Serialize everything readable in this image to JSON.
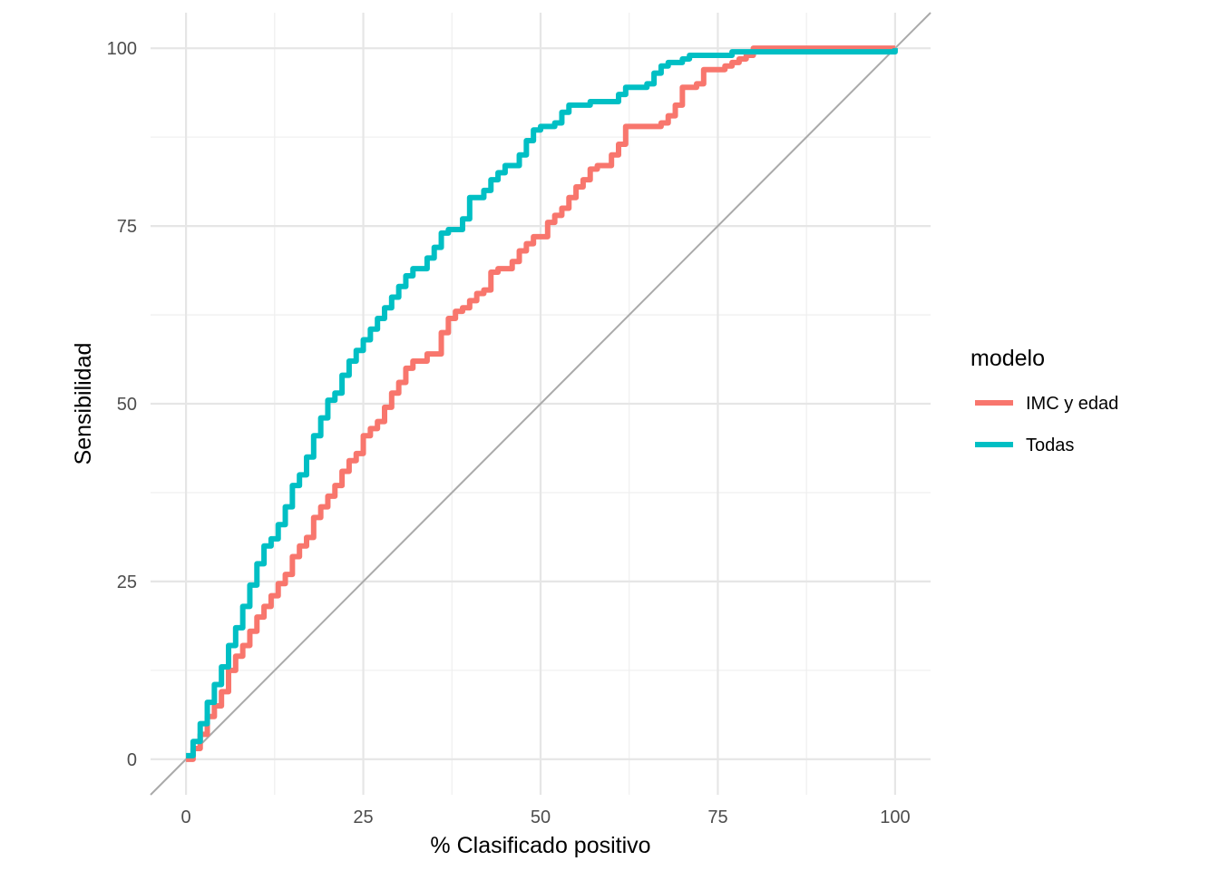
{
  "chart_data": {
    "type": "line",
    "xlabel": "% Clasificado positivo",
    "ylabel": "Sensibilidad",
    "xlim": [
      -5,
      105
    ],
    "ylim": [
      -5,
      105
    ],
    "x_ticks": [
      0,
      25,
      50,
      75,
      100
    ],
    "y_ticks": [
      0,
      25,
      50,
      75,
      100
    ],
    "grid": true,
    "legend_title": "modelo",
    "legend_position": "right",
    "reference_line": {
      "from": [
        -5,
        -5
      ],
      "to": [
        105,
        105
      ],
      "color": "#aaaaaa"
    },
    "series": [
      {
        "name": "IMC y edad",
        "color": "#F8766D",
        "x": [
          0,
          1,
          2,
          3,
          4,
          5,
          6,
          7,
          8,
          9,
          10,
          11,
          12,
          13,
          14,
          15,
          16,
          17,
          18,
          19,
          20,
          21,
          22,
          23,
          24,
          25,
          26,
          27,
          28,
          29,
          30,
          31,
          32,
          33,
          34,
          35,
          36,
          37,
          38,
          39,
          40,
          41,
          42,
          43,
          44,
          45,
          46,
          47,
          48,
          49,
          50,
          51,
          52,
          53,
          54,
          55,
          56,
          57,
          58,
          59,
          60,
          61,
          62,
          63,
          64,
          65,
          66,
          67,
          68,
          69,
          70,
          71,
          72,
          73,
          74,
          75,
          76,
          77,
          78,
          79,
          80,
          90,
          100
        ],
        "y": [
          0,
          1.5,
          3.5,
          6,
          7.5,
          9.5,
          12.5,
          14.5,
          16,
          18,
          20,
          21.5,
          23,
          24.7,
          26,
          28.5,
          30,
          31.2,
          34,
          35.5,
          37,
          38.5,
          40.5,
          42,
          43,
          45.5,
          46.5,
          47.5,
          49.5,
          51.5,
          53,
          55,
          56,
          56,
          57,
          57,
          60,
          62,
          63,
          63.5,
          64.5,
          65.5,
          66,
          68.5,
          69,
          69,
          70,
          71.5,
          72.5,
          73.5,
          73.5,
          75.5,
          76.5,
          77.5,
          79,
          80.5,
          81.5,
          83,
          83.5,
          83.5,
          85,
          86.5,
          89,
          89,
          89,
          89,
          89,
          89.5,
          90.5,
          92,
          94.5,
          94.5,
          95,
          97,
          97,
          97,
          97.5,
          98,
          98.5,
          99,
          100,
          100,
          100
        ]
      },
      {
        "name": "Todas",
        "color": "#00BFC4",
        "x": [
          0,
          1,
          2,
          3,
          4,
          5,
          6,
          7,
          8,
          9,
          10,
          11,
          12,
          13,
          14,
          15,
          16,
          17,
          18,
          19,
          20,
          21,
          22,
          23,
          24,
          25,
          26,
          27,
          28,
          29,
          30,
          31,
          32,
          33,
          34,
          35,
          36,
          37,
          38,
          39,
          40,
          41,
          42,
          43,
          44,
          45,
          46,
          47,
          48,
          49,
          50,
          51,
          52,
          53,
          54,
          55,
          56,
          57,
          58,
          59,
          60,
          61,
          62,
          63,
          64,
          65,
          66,
          67,
          68,
          69,
          70,
          71,
          72,
          73,
          74,
          75,
          76,
          77,
          78,
          79,
          80,
          90,
          100
        ],
        "y": [
          0.5,
          2.5,
          5,
          8,
          10.5,
          13,
          16,
          18.5,
          21.5,
          24.5,
          27.5,
          30,
          31,
          33,
          35.5,
          38.5,
          40,
          42.5,
          45.5,
          48,
          50.5,
          51.5,
          54,
          56,
          57.5,
          59,
          60.5,
          62,
          63.5,
          65,
          66.5,
          68,
          69,
          69,
          70.5,
          72,
          74,
          74.5,
          74.5,
          76,
          79,
          79,
          80,
          81.5,
          82.5,
          83.5,
          83.5,
          85,
          87,
          88.5,
          89,
          89,
          89.5,
          91,
          92,
          92,
          92,
          92.5,
          92.5,
          92.5,
          92.5,
          93.5,
          94.5,
          94.5,
          94.5,
          95,
          96.5,
          97.5,
          98,
          98,
          98.5,
          99,
          99,
          99,
          99,
          99,
          99,
          99.5,
          99.5,
          99.5,
          99.5,
          99.5,
          100
        ]
      }
    ]
  }
}
